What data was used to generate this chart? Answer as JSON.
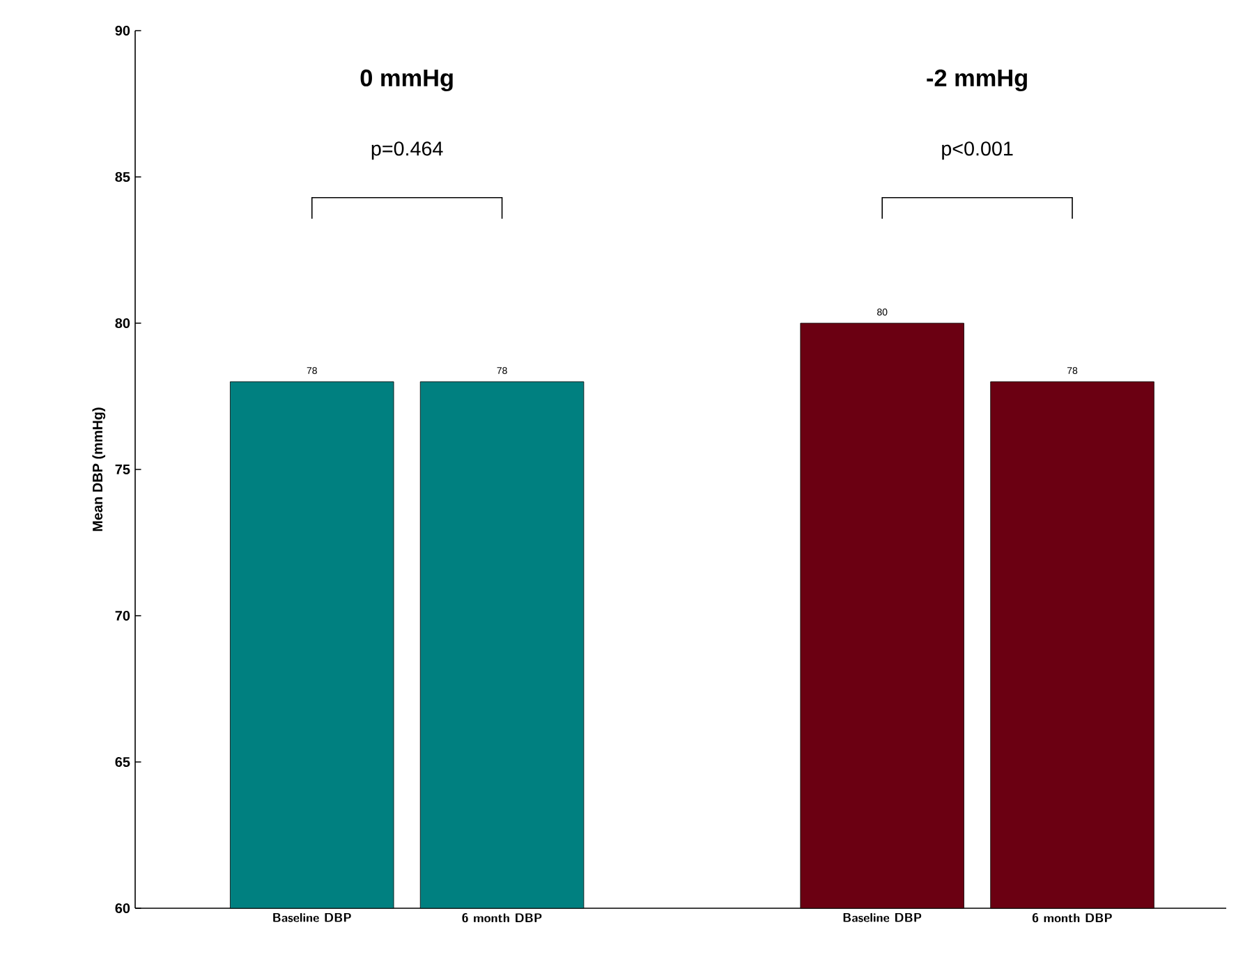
{
  "chart_data": {
    "type": "bar",
    "ylabel": "Mean DBP (mmHg)",
    "categories": [
      "Baseline DBP",
      "6 month DBP",
      null,
      "Baseline DBP",
      "6 month DBP"
    ],
    "values": [
      78,
      78,
      null,
      80,
      78
    ],
    "colors": [
      "#008080",
      "#008080",
      null,
      "#6b0012",
      "#6b0012"
    ],
    "data_labels": true,
    "ylim": [
      60,
      90
    ],
    "yticks": [
      60,
      65,
      70,
      75,
      80,
      85,
      90
    ],
    "grid": false,
    "annotations": [
      "0 mmHg",
      "p=0.464",
      "-2 mmHg",
      "p<0.001"
    ]
  }
}
